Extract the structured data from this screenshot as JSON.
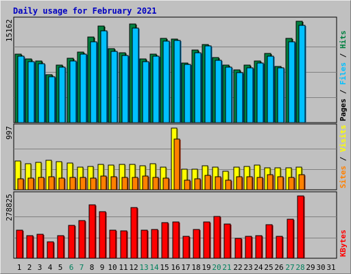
{
  "chart_data": [
    {
      "type": "bar",
      "title": "Daily usage for February 2021",
      "y_max_label": "15162",
      "ylim": [
        0,
        15162
      ],
      "categories": [
        "1",
        "2",
        "3",
        "4",
        "5",
        "6",
        "7",
        "8",
        "9",
        "10",
        "11",
        "12",
        "13",
        "14",
        "15",
        "16",
        "17",
        "18",
        "19",
        "20",
        "21",
        "22",
        "23",
        "24",
        "25",
        "26",
        "27",
        "28",
        "29",
        "30",
        "31"
      ],
      "weekend_days": [
        "6",
        "7",
        "13",
        "14",
        "20",
        "21",
        "27",
        "28"
      ],
      "grid": true,
      "legend_right": [
        "Pages",
        "Files",
        "Hits"
      ],
      "series": [
        {
          "name": "Hits",
          "color": "#008040",
          "values": [
            10200,
            9500,
            9200,
            7200,
            8600,
            9600,
            10600,
            12800,
            14400,
            11100,
            10400,
            14800,
            9500,
            10200,
            12600,
            12500,
            8900,
            10900,
            11700,
            9700,
            8600,
            7900,
            8600,
            9200,
            10300,
            8400,
            12600,
            15162,
            0,
            0,
            0
          ]
        },
        {
          "name": "Files",
          "color": "#00c0ff",
          "values": [
            9900,
            9100,
            8800,
            6900,
            8300,
            9200,
            10200,
            12100,
            13700,
            10700,
            10000,
            14100,
            9100,
            9900,
            12200,
            12300,
            8700,
            10400,
            11500,
            9300,
            8300,
            7500,
            8200,
            8900,
            9900,
            8200,
            12100,
            14500,
            0,
            0,
            0
          ]
        }
      ]
    },
    {
      "type": "bar",
      "y_max_label": "997",
      "ylim": [
        0,
        997
      ],
      "categories": [
        "1",
        "2",
        "3",
        "4",
        "5",
        "6",
        "7",
        "8",
        "9",
        "10",
        "11",
        "12",
        "13",
        "14",
        "15",
        "16",
        "17",
        "18",
        "19",
        "20",
        "21",
        "22",
        "23",
        "24",
        "25",
        "26",
        "27",
        "28",
        "29",
        "30",
        "31"
      ],
      "grid": true,
      "legend_right": [
        "Sites",
        "Visits"
      ],
      "series": [
        {
          "name": "Visits",
          "color": "#ffff00",
          "values": [
            460,
            420,
            440,
            480,
            450,
            430,
            370,
            380,
            410,
            400,
            410,
            410,
            390,
            420,
            370,
            997,
            330,
            330,
            390,
            370,
            300,
            370,
            380,
            400,
            360,
            360,
            360,
            370,
            0,
            0,
            0
          ]
        },
        {
          "name": "Sites",
          "color": "#ff8000",
          "values": [
            180,
            190,
            200,
            210,
            190,
            200,
            200,
            190,
            220,
            210,
            200,
            200,
            220,
            200,
            190,
            820,
            160,
            180,
            230,
            210,
            160,
            210,
            210,
            200,
            240,
            210,
            200,
            240,
            0,
            0,
            0
          ]
        }
      ]
    },
    {
      "type": "bar",
      "y_max_label": "278825",
      "ylim": [
        0,
        278825
      ],
      "categories": [
        "1",
        "2",
        "3",
        "4",
        "5",
        "6",
        "7",
        "8",
        "9",
        "10",
        "11",
        "12",
        "13",
        "14",
        "15",
        "16",
        "17",
        "18",
        "19",
        "20",
        "21",
        "22",
        "23",
        "24",
        "25",
        "26",
        "27",
        "28",
        "29",
        "30",
        "31"
      ],
      "grid": true,
      "legend_right": [
        "KBytes"
      ],
      "series": [
        {
          "name": "KBytes",
          "color": "#ff0000",
          "values": [
            125000,
            102000,
            106000,
            73000,
            102000,
            147000,
            170000,
            238000,
            208000,
            125000,
            122000,
            228000,
            125000,
            130000,
            160000,
            163000,
            98000,
            129000,
            162000,
            187000,
            154000,
            89000,
            99000,
            100000,
            150000,
            97000,
            174000,
            278825,
            0,
            0,
            0
          ]
        }
      ]
    }
  ]
}
